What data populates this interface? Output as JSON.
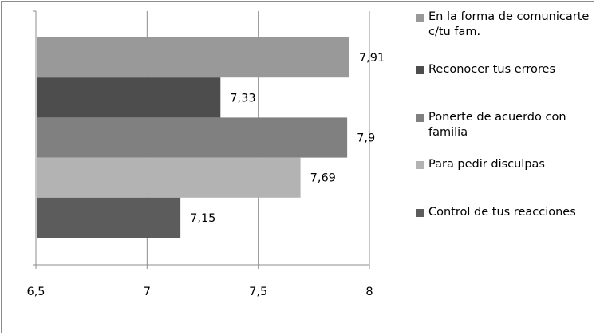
{
  "chart_data": {
    "type": "bar",
    "orientation": "horizontal",
    "categories": [
      "En la forma de comunicarte c/tu fam.",
      "Reconocer tus errores",
      "Ponerte de acuerdo con familia",
      "Para pedir disculpas",
      "Control de tus reacciones"
    ],
    "values": [
      7.91,
      7.33,
      7.9,
      7.69,
      7.15
    ],
    "data_labels": [
      "7,91",
      "7,33",
      "7,9",
      "7,69",
      "7,15"
    ],
    "colors": [
      "#999999",
      "#4d4d4d",
      "#808080",
      "#b3b3b3",
      "#5c5c5c"
    ],
    "xlim": [
      6.5,
      8
    ],
    "xticks": [
      6.5,
      7,
      7.5,
      8
    ],
    "xtick_labels": [
      "6,5",
      "7",
      "7,5",
      "8"
    ],
    "grid": "vertical",
    "legend_position": "right"
  }
}
